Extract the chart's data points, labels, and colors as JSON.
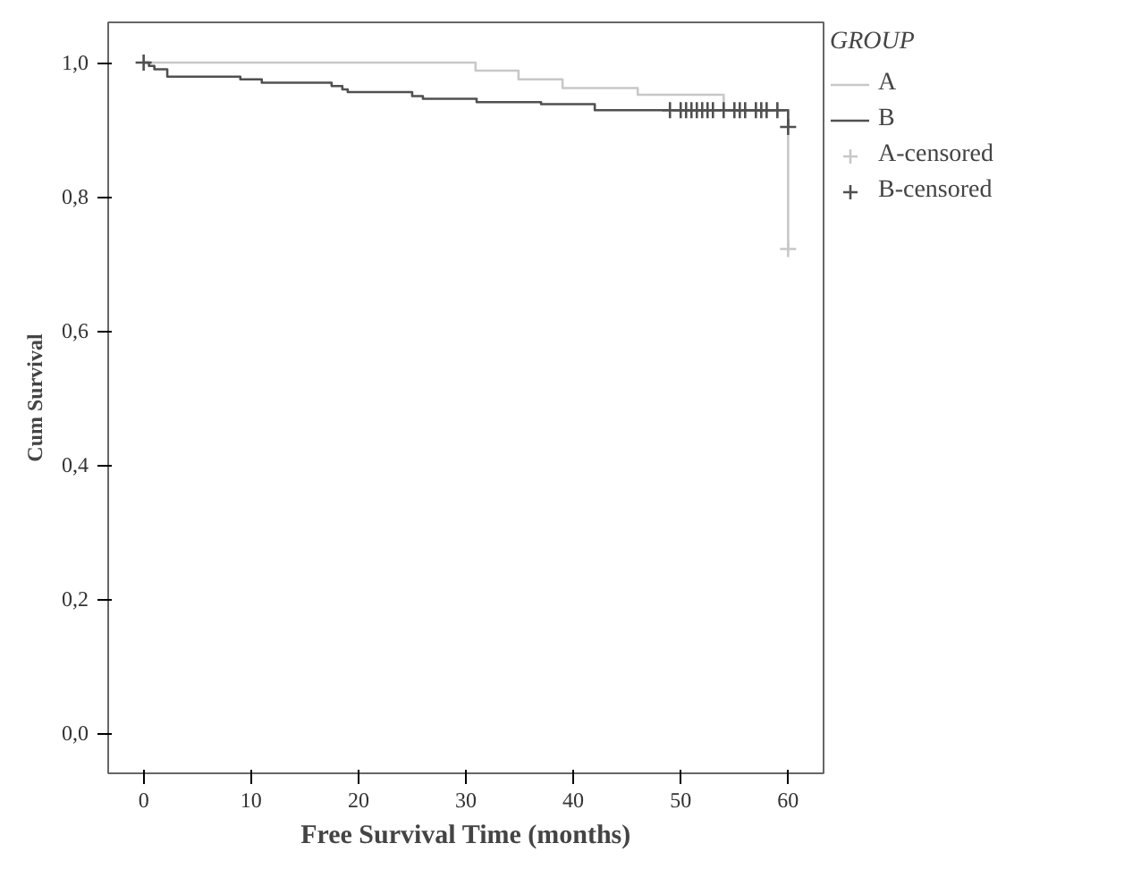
{
  "chart_data": {
    "type": "step",
    "xlabel": "Free Survival Time (months)",
    "ylabel": "Cum Survival",
    "legend_title": "GROUP",
    "legend": "top right",
    "grid": false,
    "xlim": [
      -3.3,
      63.3
    ],
    "ylim": [
      -0.06,
      1.06
    ],
    "xticks": [
      0,
      10,
      20,
      30,
      40,
      50,
      60
    ],
    "yticks": [
      {
        "value": 0,
        "label": "0,0"
      },
      {
        "value": 0.2,
        "label": "0,2"
      },
      {
        "value": 0.4,
        "label": "0,4"
      },
      {
        "value": 0.6,
        "label": "0,6"
      },
      {
        "value": 0.8,
        "label": "0,8"
      },
      {
        "value": 1,
        "label": "1,0"
      }
    ],
    "series": [
      {
        "name": "A",
        "color": "#c8c8c8",
        "x": [
          0,
          30.9,
          34.9,
          39,
          46,
          54,
          60
        ],
        "values": [
          1,
          0.988,
          0.975,
          0.962,
          0.952,
          0.929,
          0.722
        ]
      },
      {
        "name": "B",
        "color": "#505050",
        "x": [
          0,
          0.5,
          1,
          2.2,
          9,
          11,
          17.5,
          18.5,
          19,
          25,
          26,
          31,
          37,
          42,
          60
        ],
        "values": [
          1,
          0.995,
          0.99,
          0.979,
          0.975,
          0.97,
          0.965,
          0.96,
          0.956,
          0.95,
          0.946,
          0.941,
          0.938,
          0.929,
          0.904
        ]
      },
      {
        "name": "A-censored",
        "type": "scatter",
        "marker": "cross",
        "color": "#c8c8c8",
        "x": [
          60
        ],
        "values": [
          0.722
        ]
      },
      {
        "name": "B-censored",
        "type": "scatter",
        "marker": "cross",
        "color": "#505050",
        "x": [
          0,
          49,
          50,
          50.5,
          51,
          51.5,
          52,
          52.5,
          53,
          54,
          55,
          55.5,
          56,
          57,
          57.5,
          58,
          59,
          60
        ],
        "values": [
          1,
          0.929,
          0.929,
          0.929,
          0.929,
          0.929,
          0.929,
          0.929,
          0.929,
          0.929,
          0.929,
          0.929,
          0.929,
          0.929,
          0.929,
          0.929,
          0.929,
          0.904
        ]
      }
    ]
  }
}
